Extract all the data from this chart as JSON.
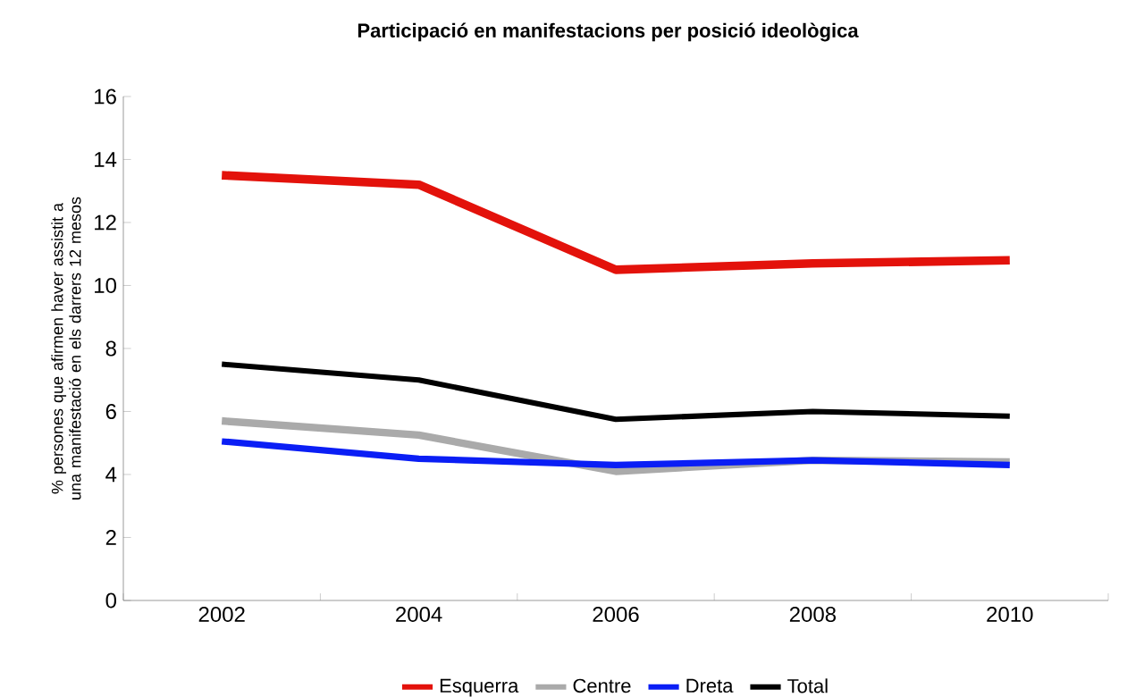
{
  "chart_data": {
    "type": "line",
    "title": "Participació en manifestacions per posició ideològica",
    "ylabel": "% persones que afirmen haver assistit a una manifestació en els darrers 12 mesos",
    "categories": [
      "2002",
      "2004",
      "2006",
      "2008",
      "2010"
    ],
    "ylim": [
      0,
      16
    ],
    "yticks": [
      0,
      2,
      4,
      6,
      8,
      10,
      12,
      14,
      16
    ],
    "grid": false,
    "legend": "bottom",
    "marker": "none",
    "line_style": "solid",
    "series": [
      {
        "name": "Esquerra",
        "color": "#e3120b",
        "values": [
          13.5,
          13.2,
          10.5,
          10.7,
          10.8
        ]
      },
      {
        "name": "Centre",
        "color": "#aaaaaa",
        "values": [
          5.7,
          5.25,
          4.1,
          4.45,
          4.4
        ]
      },
      {
        "name": "Dreta",
        "color": "#0a1ef5",
        "values": [
          5.05,
          4.5,
          4.3,
          4.45,
          4.3
        ]
      },
      {
        "name": "Total",
        "color": "#000000",
        "values": [
          7.5,
          7.0,
          5.75,
          6.0,
          5.85
        ]
      }
    ]
  }
}
